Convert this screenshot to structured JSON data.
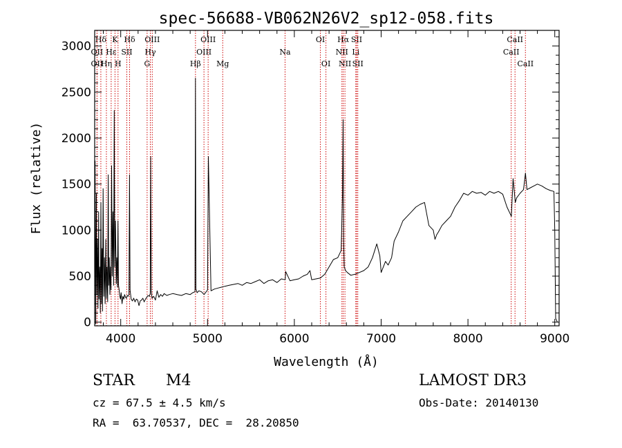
{
  "chart_data": {
    "type": "line",
    "title": "spec-56688-VB062N26V2_sp12-058.fits",
    "xlabel": "Wavelength (Å)",
    "ylabel": "Flux (relative)",
    "xlim": [
      3700,
      9050
    ],
    "ylim": [
      -40,
      3170
    ],
    "xticks": [
      4000,
      5000,
      6000,
      7000,
      8000,
      9000
    ],
    "yticks": [
      0,
      500,
      1000,
      1500,
      2000,
      2500,
      3000
    ],
    "xtick_labels": [
      "4000",
      "5000",
      "6000",
      "7000",
      "8000",
      "9000"
    ],
    "ytick_labels": [
      "0",
      "500",
      "1000",
      "1500",
      "2000",
      "2500",
      "3000"
    ],
    "grid": false,
    "line_color": "#000000",
    "marker_color": "#cc0000",
    "series": [
      {
        "name": "flux",
        "x": [
          3700,
          3705,
          3712,
          3720,
          3725,
          3732,
          3738,
          3745,
          3750,
          3758,
          3765,
          3772,
          3778,
          3785,
          3790,
          3797,
          3805,
          3812,
          3820,
          3828,
          3835,
          3842,
          3850,
          3856,
          3862,
          3868,
          3875,
          3882,
          3888,
          3895,
          3902,
          3910,
          3918,
          3925,
          3932,
          3940,
          3948,
          3955,
          3962,
          3968,
          3975,
          3982,
          3990,
          3998,
          4005,
          4015,
          4025,
          4035,
          4045,
          4055,
          4065,
          4075,
          4085,
          4095,
          4101,
          4108,
          4120,
          4135,
          4150,
          4165,
          4180,
          4195,
          4210,
          4225,
          4240,
          4255,
          4270,
          4285,
          4300,
          4315,
          4330,
          4340,
          4345,
          4352,
          4360,
          4380,
          4400,
          4420,
          4440,
          4460,
          4480,
          4500,
          4530,
          4560,
          4600,
          4650,
          4700,
          4750,
          4800,
          4830,
          4855,
          4861,
          4866,
          4880,
          4900,
          4930,
          4960,
          5000,
          5010,
          5040,
          5080,
          5120,
          5160,
          5200,
          5250,
          5300,
          5350,
          5400,
          5450,
          5500,
          5550,
          5600,
          5650,
          5700,
          5750,
          5800,
          5850,
          5895,
          5900,
          5950,
          6000,
          6050,
          6100,
          6150,
          6180,
          6200,
          6250,
          6300,
          6350,
          6400,
          6450,
          6500,
          6540,
          6555,
          6562,
          6568,
          6575,
          6590,
          6610,
          6650,
          6700,
          6750,
          6800,
          6850,
          6900,
          6950,
          6985,
          7000,
          7050,
          7080,
          7120,
          7150,
          7200,
          7250,
          7300,
          7350,
          7400,
          7450,
          7500,
          7550,
          7600,
          7620,
          7640,
          7660,
          7700,
          7750,
          7800,
          7850,
          7900,
          7950,
          8000,
          8050,
          8100,
          8150,
          8200,
          8250,
          8300,
          8350,
          8400,
          8450,
          8500,
          8520,
          8545,
          8560,
          8600,
          8640,
          8662,
          8680,
          8720,
          8760,
          8800,
          8850,
          8900,
          8950,
          8990,
          9000,
          9010,
          9030
        ],
        "y": [
          150,
          1750,
          -20,
          1400,
          300,
          900,
          150,
          1200,
          250,
          600,
          100,
          1300,
          200,
          800,
          120,
          1450,
          280,
          700,
          200,
          900,
          260,
          600,
          220,
          1600,
          400,
          700,
          300,
          600,
          350,
          1700,
          500,
          1200,
          400,
          2300,
          600,
          1100,
          420,
          700,
          380,
          1100,
          400,
          350,
          280,
          250,
          320,
          200,
          280,
          250,
          300,
          270,
          260,
          290,
          280,
          300,
          1600,
          350,
          250,
          230,
          260,
          220,
          250,
          240,
          180,
          230,
          240,
          260,
          220,
          250,
          270,
          290,
          280,
          310,
          1800,
          330,
          260,
          280,
          240,
          340,
          270,
          300,
          280,
          310,
          290,
          300,
          310,
          300,
          290,
          310,
          300,
          320,
          330,
          2650,
          360,
          320,
          340,
          330,
          300,
          350,
          1800,
          340,
          360,
          370,
          380,
          390,
          400,
          410,
          420,
          400,
          430,
          420,
          440,
          460,
          420,
          450,
          460,
          430,
          470,
          460,
          550,
          450,
          460,
          470,
          500,
          520,
          560,
          460,
          470,
          480,
          520,
          600,
          680,
          700,
          780,
          1400,
          2200,
          900,
          600,
          560,
          540,
          510,
          520,
          540,
          560,
          600,
          700,
          850,
          720,
          540,
          660,
          620,
          700,
          880,
          980,
          1100,
          1150,
          1200,
          1250,
          1280,
          1300,
          1050,
          1000,
          900,
          950,
          980,
          1050,
          1100,
          1150,
          1250,
          1320,
          1400,
          1380,
          1420,
          1400,
          1410,
          1380,
          1420,
          1400,
          1420,
          1390,
          1250,
          1150,
          1560,
          1300,
          1350,
          1400,
          1440,
          1620,
          1440,
          1460,
          1480,
          1500,
          1480,
          1450,
          1430,
          1420,
          1000,
          40,
          0
        ]
      }
    ],
    "line_markers": [
      {
        "label": "Hδ",
        "x": 3771,
        "row": 1
      },
      {
        "label": "OII",
        "x": 3727,
        "row": 2
      },
      {
        "label": "OII",
        "x": 3727,
        "row": 3
      },
      {
        "label": "K",
        "x": 3934,
        "row": 1
      },
      {
        "label": "Hδ",
        "x": 4102,
        "row": 1
      },
      {
        "label": "Hε",
        "x": 3890,
        "row": 2
      },
      {
        "label": "SII",
        "x": 4070,
        "row": 2
      },
      {
        "label": "Hη",
        "x": 3835,
        "row": 3
      },
      {
        "label": "H",
        "x": 3969,
        "row": 3
      },
      {
        "label": "OIII",
        "x": 4363,
        "row": 1
      },
      {
        "label": "Hγ",
        "x": 4341,
        "row": 2
      },
      {
        "label": "G",
        "x": 4304,
        "row": 3
      },
      {
        "label": "OIII",
        "x": 5007,
        "row": 1
      },
      {
        "label": "OIII",
        "x": 4959,
        "row": 2
      },
      {
        "label": "Hβ",
        "x": 4861,
        "row": 3
      },
      {
        "label": "Mg",
        "x": 5175,
        "row": 3
      },
      {
        "label": "Na",
        "x": 5893,
        "row": 2
      },
      {
        "label": "OI",
        "x": 6300,
        "row": 1
      },
      {
        "label": "OI",
        "x": 6364,
        "row": 3
      },
      {
        "label": "Hα",
        "x": 6563,
        "row": 1
      },
      {
        "label": "SII",
        "x": 6717,
        "row": 1
      },
      {
        "label": "NII",
        "x": 6548,
        "row": 2
      },
      {
        "label": "Li",
        "x": 6708,
        "row": 2
      },
      {
        "label": "NII",
        "x": 6583,
        "row": 3
      },
      {
        "label": "SII",
        "x": 6731,
        "row": 3
      },
      {
        "label": "CaII",
        "x": 8542,
        "row": 1
      },
      {
        "label": "CaII",
        "x": 8498,
        "row": 2
      },
      {
        "label": "CaII",
        "x": 8662,
        "row": 3
      }
    ]
  },
  "footer": {
    "object_type": "STAR",
    "subclass": "M4",
    "survey": "LAMOST DR3",
    "redshift": "cz = 67.5 ± 4.5 km/s",
    "obs_date": "Obs-Date: 20140130",
    "coords": "RA =  63.70537, DEC =  28.20850"
  }
}
